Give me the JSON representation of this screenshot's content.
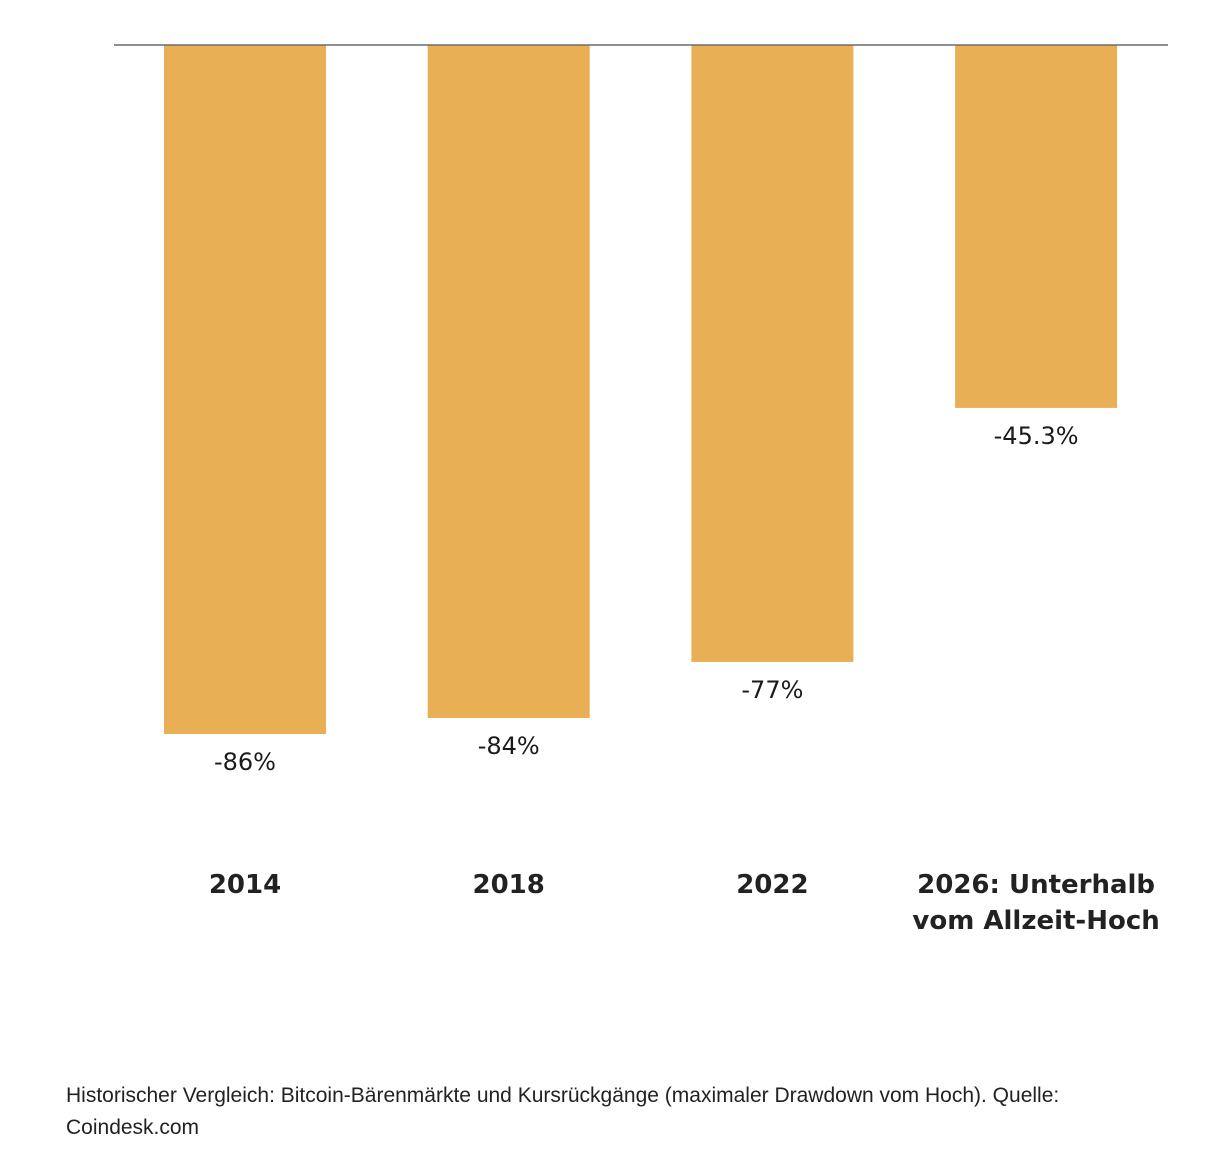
{
  "chart_data": {
    "type": "bar",
    "categories": [
      "2014",
      "2018",
      "2022",
      "2026: Unterhalb vom Allzeit-Hoch"
    ],
    "category_lines": [
      [
        "2014"
      ],
      [
        "2018"
      ],
      [
        "2022"
      ],
      [
        "2026: Unterhalb",
        "vom Allzeit-Hoch"
      ]
    ],
    "values": [
      -86,
      -84,
      -77,
      -45.3
    ],
    "value_labels": [
      "-86%",
      "-84%",
      "-77%",
      "-45.3%"
    ],
    "ylim": [
      -86,
      0
    ],
    "grid": false,
    "legend": "none",
    "bar_color": "#E8AF55",
    "baseline_color": "#6b6b6b"
  },
  "caption": "Historischer Vergleich: Bitcoin-Bärenmärkte und Kursrückgänge (maximaler Drawdown vom Hoch). Quelle: Coindesk.com"
}
